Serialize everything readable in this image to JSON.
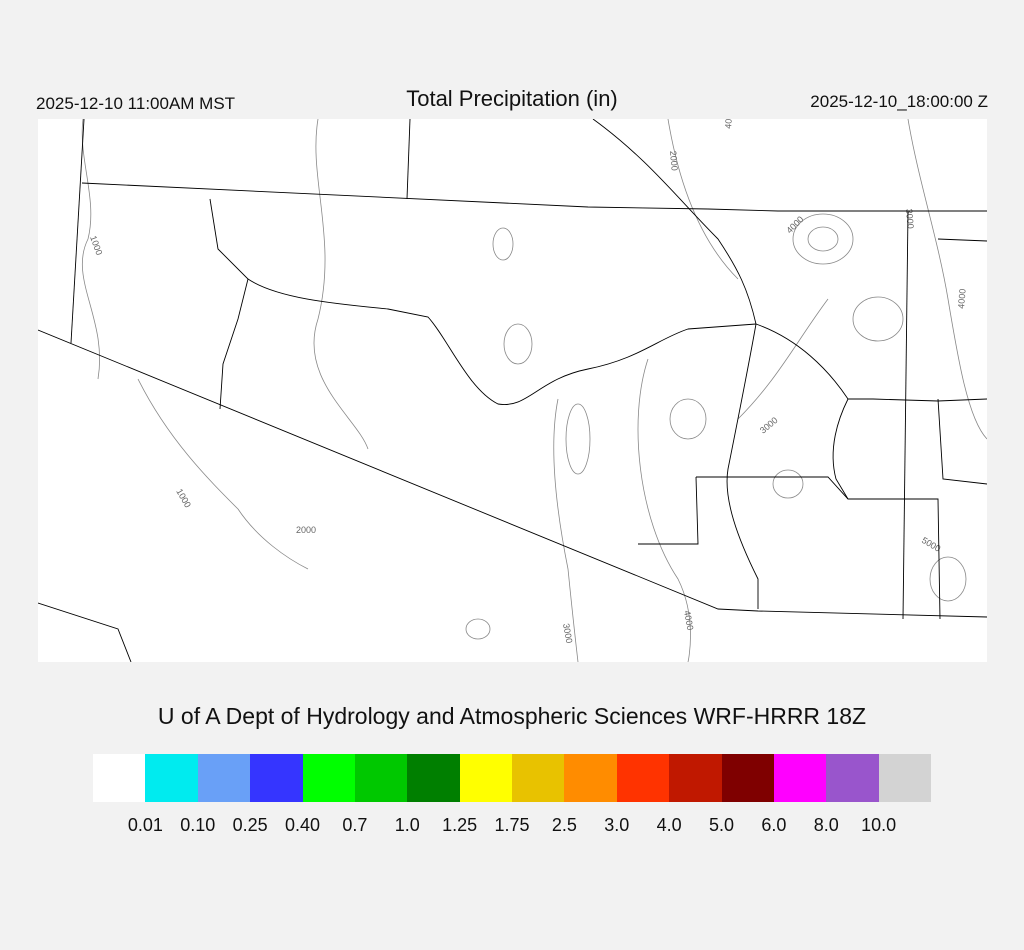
{
  "header": {
    "local_time": "2025-12-10 11:00AM MST",
    "title": "Total Precipitation (in)",
    "utc_time": "2025-12-10_18:00:00 Z"
  },
  "map": {
    "contour_labels": [
      "1000",
      "2000",
      "3000",
      "4000",
      "5000",
      "1000",
      "2000",
      "3000",
      "4000",
      "3000",
      "4000",
      "4000"
    ],
    "boundary_color": "#000000",
    "contour_color": "#888888",
    "precip_field": "none (all below 0.01)"
  },
  "subtitle": "U of A Dept of Hydrology and Atmospheric Sciences WRF-HRRR 18Z",
  "colorbar": {
    "colors": [
      "#ffffff",
      "#00ebef",
      "#69a0f7",
      "#3535ff",
      "#00ff00",
      "#00c800",
      "#007f00",
      "#ffff00",
      "#e8c200",
      "#ff8c00",
      "#ff3300",
      "#c01800",
      "#7f0000",
      "#ff00ff",
      "#9955cc",
      "#d3d3d3"
    ],
    "labels": [
      "0.01",
      "0.10",
      "0.25",
      "0.40",
      "0.7",
      "1.0",
      "1.25",
      "1.75",
      "2.5",
      "3.0",
      "4.0",
      "5.0",
      "6.0",
      "8.0",
      "10.0"
    ]
  }
}
